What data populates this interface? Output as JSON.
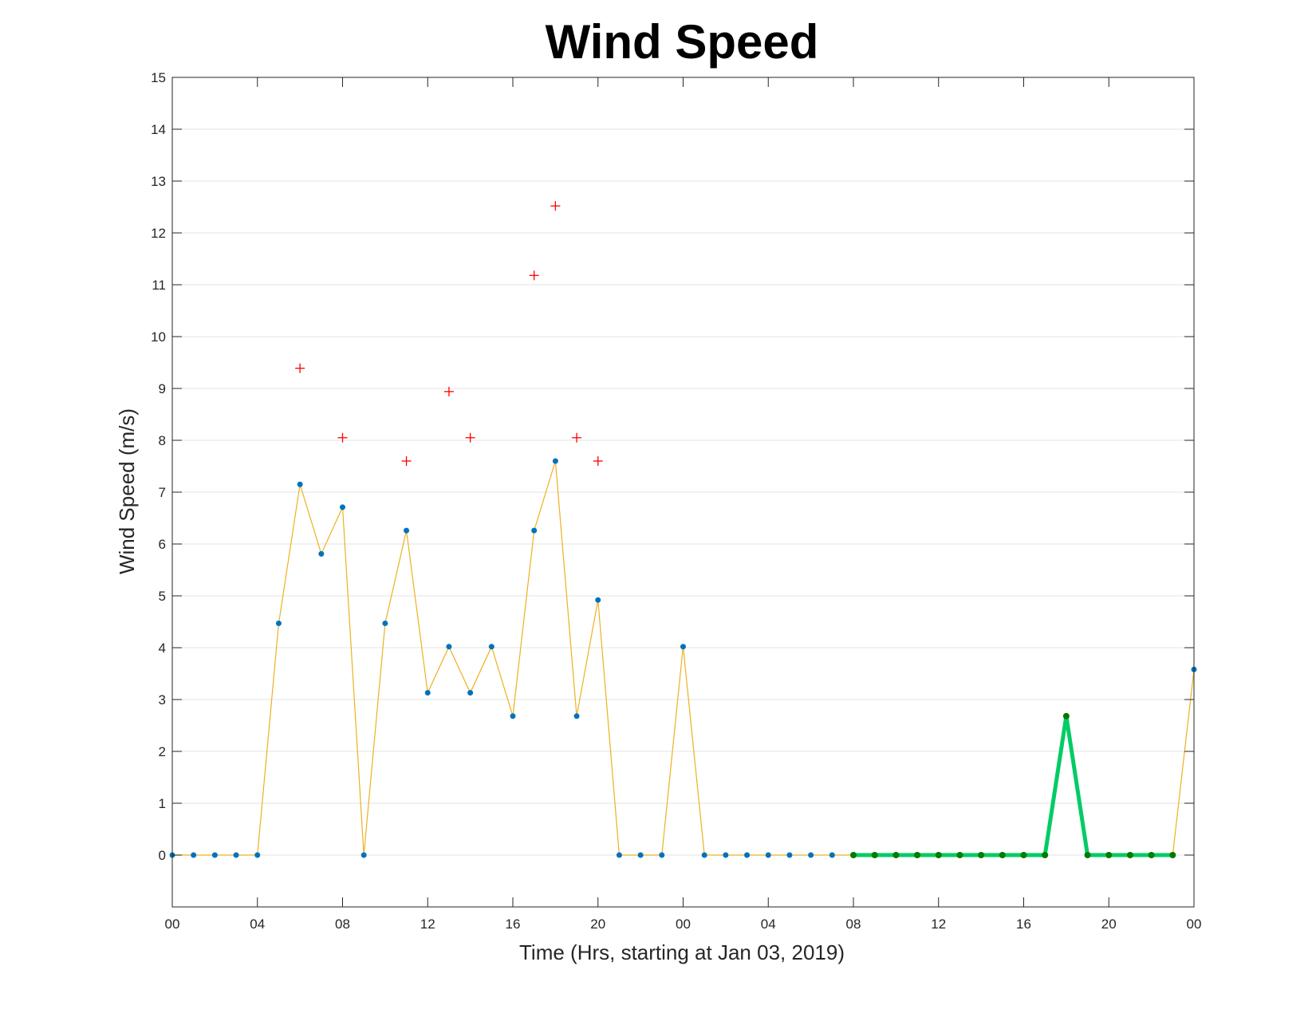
{
  "chart_data": {
    "type": "line",
    "title": "Wind Speed",
    "xlabel": "Time (Hrs, starting at Jan 03, 2019)",
    "ylabel": "Wind Speed (m/s)",
    "x_unit": "hour",
    "xlim": [
      0,
      48
    ],
    "ylim": [
      -1,
      15
    ],
    "yticks": [
      0,
      1,
      2,
      3,
      4,
      5,
      6,
      7,
      8,
      9,
      10,
      11,
      12,
      13,
      14,
      15
    ],
    "xticks": [
      0,
      4,
      8,
      12,
      16,
      20,
      24,
      28,
      32,
      36,
      40,
      44,
      48
    ],
    "xtick_labels": [
      "00",
      "04",
      "08",
      "12",
      "16",
      "20",
      "00",
      "04",
      "08",
      "12",
      "16",
      "20",
      "00"
    ],
    "grid": true,
    "colors": {
      "line": "#EDB120",
      "marker": "#0072BD",
      "gust": "#FF0000",
      "highlight_line": "#00CC66",
      "highlight_marker": "#007A00"
    },
    "series": [
      {
        "style": "line-with-dots",
        "x": [
          0,
          1,
          2,
          3,
          4,
          5,
          6,
          7,
          8,
          9,
          10,
          11,
          12,
          13,
          14,
          15,
          16,
          17,
          18,
          19,
          20,
          21,
          22,
          23,
          24,
          25,
          26,
          27,
          28,
          29,
          30,
          31,
          32,
          33,
          34,
          35,
          36,
          37,
          38,
          39,
          40,
          41,
          42,
          43,
          44,
          45,
          46,
          47,
          48
        ],
        "y": [
          0,
          0,
          0,
          0,
          0,
          4.47,
          7.15,
          5.81,
          6.71,
          0,
          4.47,
          6.26,
          3.13,
          4.02,
          3.13,
          4.02,
          2.68,
          6.26,
          7.6,
          2.68,
          4.92,
          0,
          0,
          0,
          4.02,
          0,
          0,
          0,
          0,
          0,
          0,
          0,
          0,
          0,
          0,
          0,
          0,
          0,
          0,
          0,
          0,
          0,
          2.68,
          0,
          0,
          0,
          0,
          0,
          3.58
        ]
      },
      {
        "style": "cross-markers",
        "x": [
          6,
          8,
          11,
          13,
          14,
          17,
          18,
          19,
          20
        ],
        "y": [
          9.39,
          8.05,
          7.6,
          8.94,
          8.05,
          11.18,
          12.52,
          8.05,
          7.6
        ]
      },
      {
        "style": "thick-line-with-dots",
        "x": [
          32,
          33,
          34,
          35,
          36,
          37,
          38,
          39,
          40,
          41,
          42,
          43,
          44,
          45,
          46,
          47
        ],
        "y": [
          0,
          0,
          0,
          0,
          0,
          0,
          0,
          0,
          0,
          0,
          2.68,
          0,
          0,
          0,
          0,
          0
        ]
      }
    ]
  }
}
